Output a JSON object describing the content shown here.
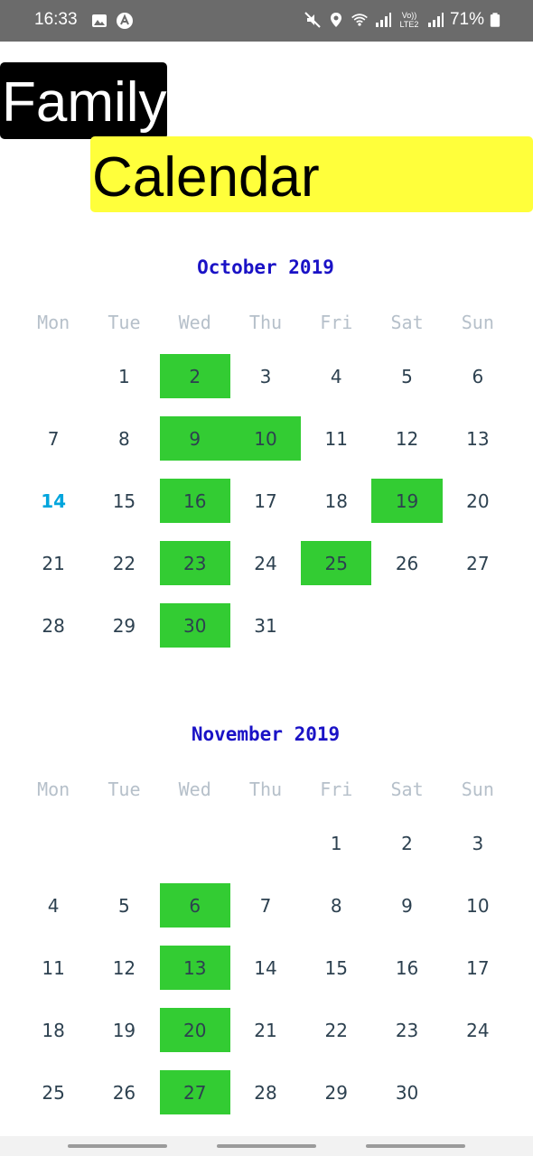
{
  "status_bar": {
    "time": "16:33",
    "battery": "71%",
    "icons_left": [
      "image-icon",
      "app-icon"
    ],
    "icons_right": [
      "mute-icon",
      "location-icon",
      "wifi-icon",
      "signal-icon",
      "volte-icon",
      "signal-icon",
      "battery-icon"
    ],
    "volte_label": "Vo)) LTE2"
  },
  "title": {
    "word1": "Family",
    "word2": "Calendar"
  },
  "weekdays": [
    "Mon",
    "Tue",
    "Wed",
    "Thu",
    "Fri",
    "Sat",
    "Sun"
  ],
  "colors": {
    "marked": "#33cc33",
    "today": "#00a5dd",
    "month_title": "#1a12c6"
  },
  "months": [
    {
      "title": "October 2019",
      "today": 14,
      "marked": [
        2,
        9,
        10,
        16,
        19,
        23,
        25,
        30
      ],
      "weeks": [
        [
          "",
          "1",
          "2",
          "3",
          "4",
          "5",
          "6"
        ],
        [
          "7",
          "8",
          "9",
          "10",
          "11",
          "12",
          "13"
        ],
        [
          "14",
          "15",
          "16",
          "17",
          "18",
          "19",
          "20"
        ],
        [
          "21",
          "22",
          "23",
          "24",
          "25",
          "26",
          "27"
        ],
        [
          "28",
          "29",
          "30",
          "31",
          "",
          "",
          ""
        ]
      ]
    },
    {
      "title": "November 2019",
      "today": null,
      "marked": [
        6,
        13,
        20,
        27
      ],
      "weeks": [
        [
          "",
          "",
          "",
          "",
          "1",
          "2",
          "3"
        ],
        [
          "4",
          "5",
          "6",
          "7",
          "8",
          "9",
          "10"
        ],
        [
          "11",
          "12",
          "13",
          "14",
          "15",
          "16",
          "17"
        ],
        [
          "18",
          "19",
          "20",
          "21",
          "22",
          "23",
          "24"
        ],
        [
          "25",
          "26",
          "27",
          "28",
          "29",
          "30",
          ""
        ]
      ]
    }
  ]
}
